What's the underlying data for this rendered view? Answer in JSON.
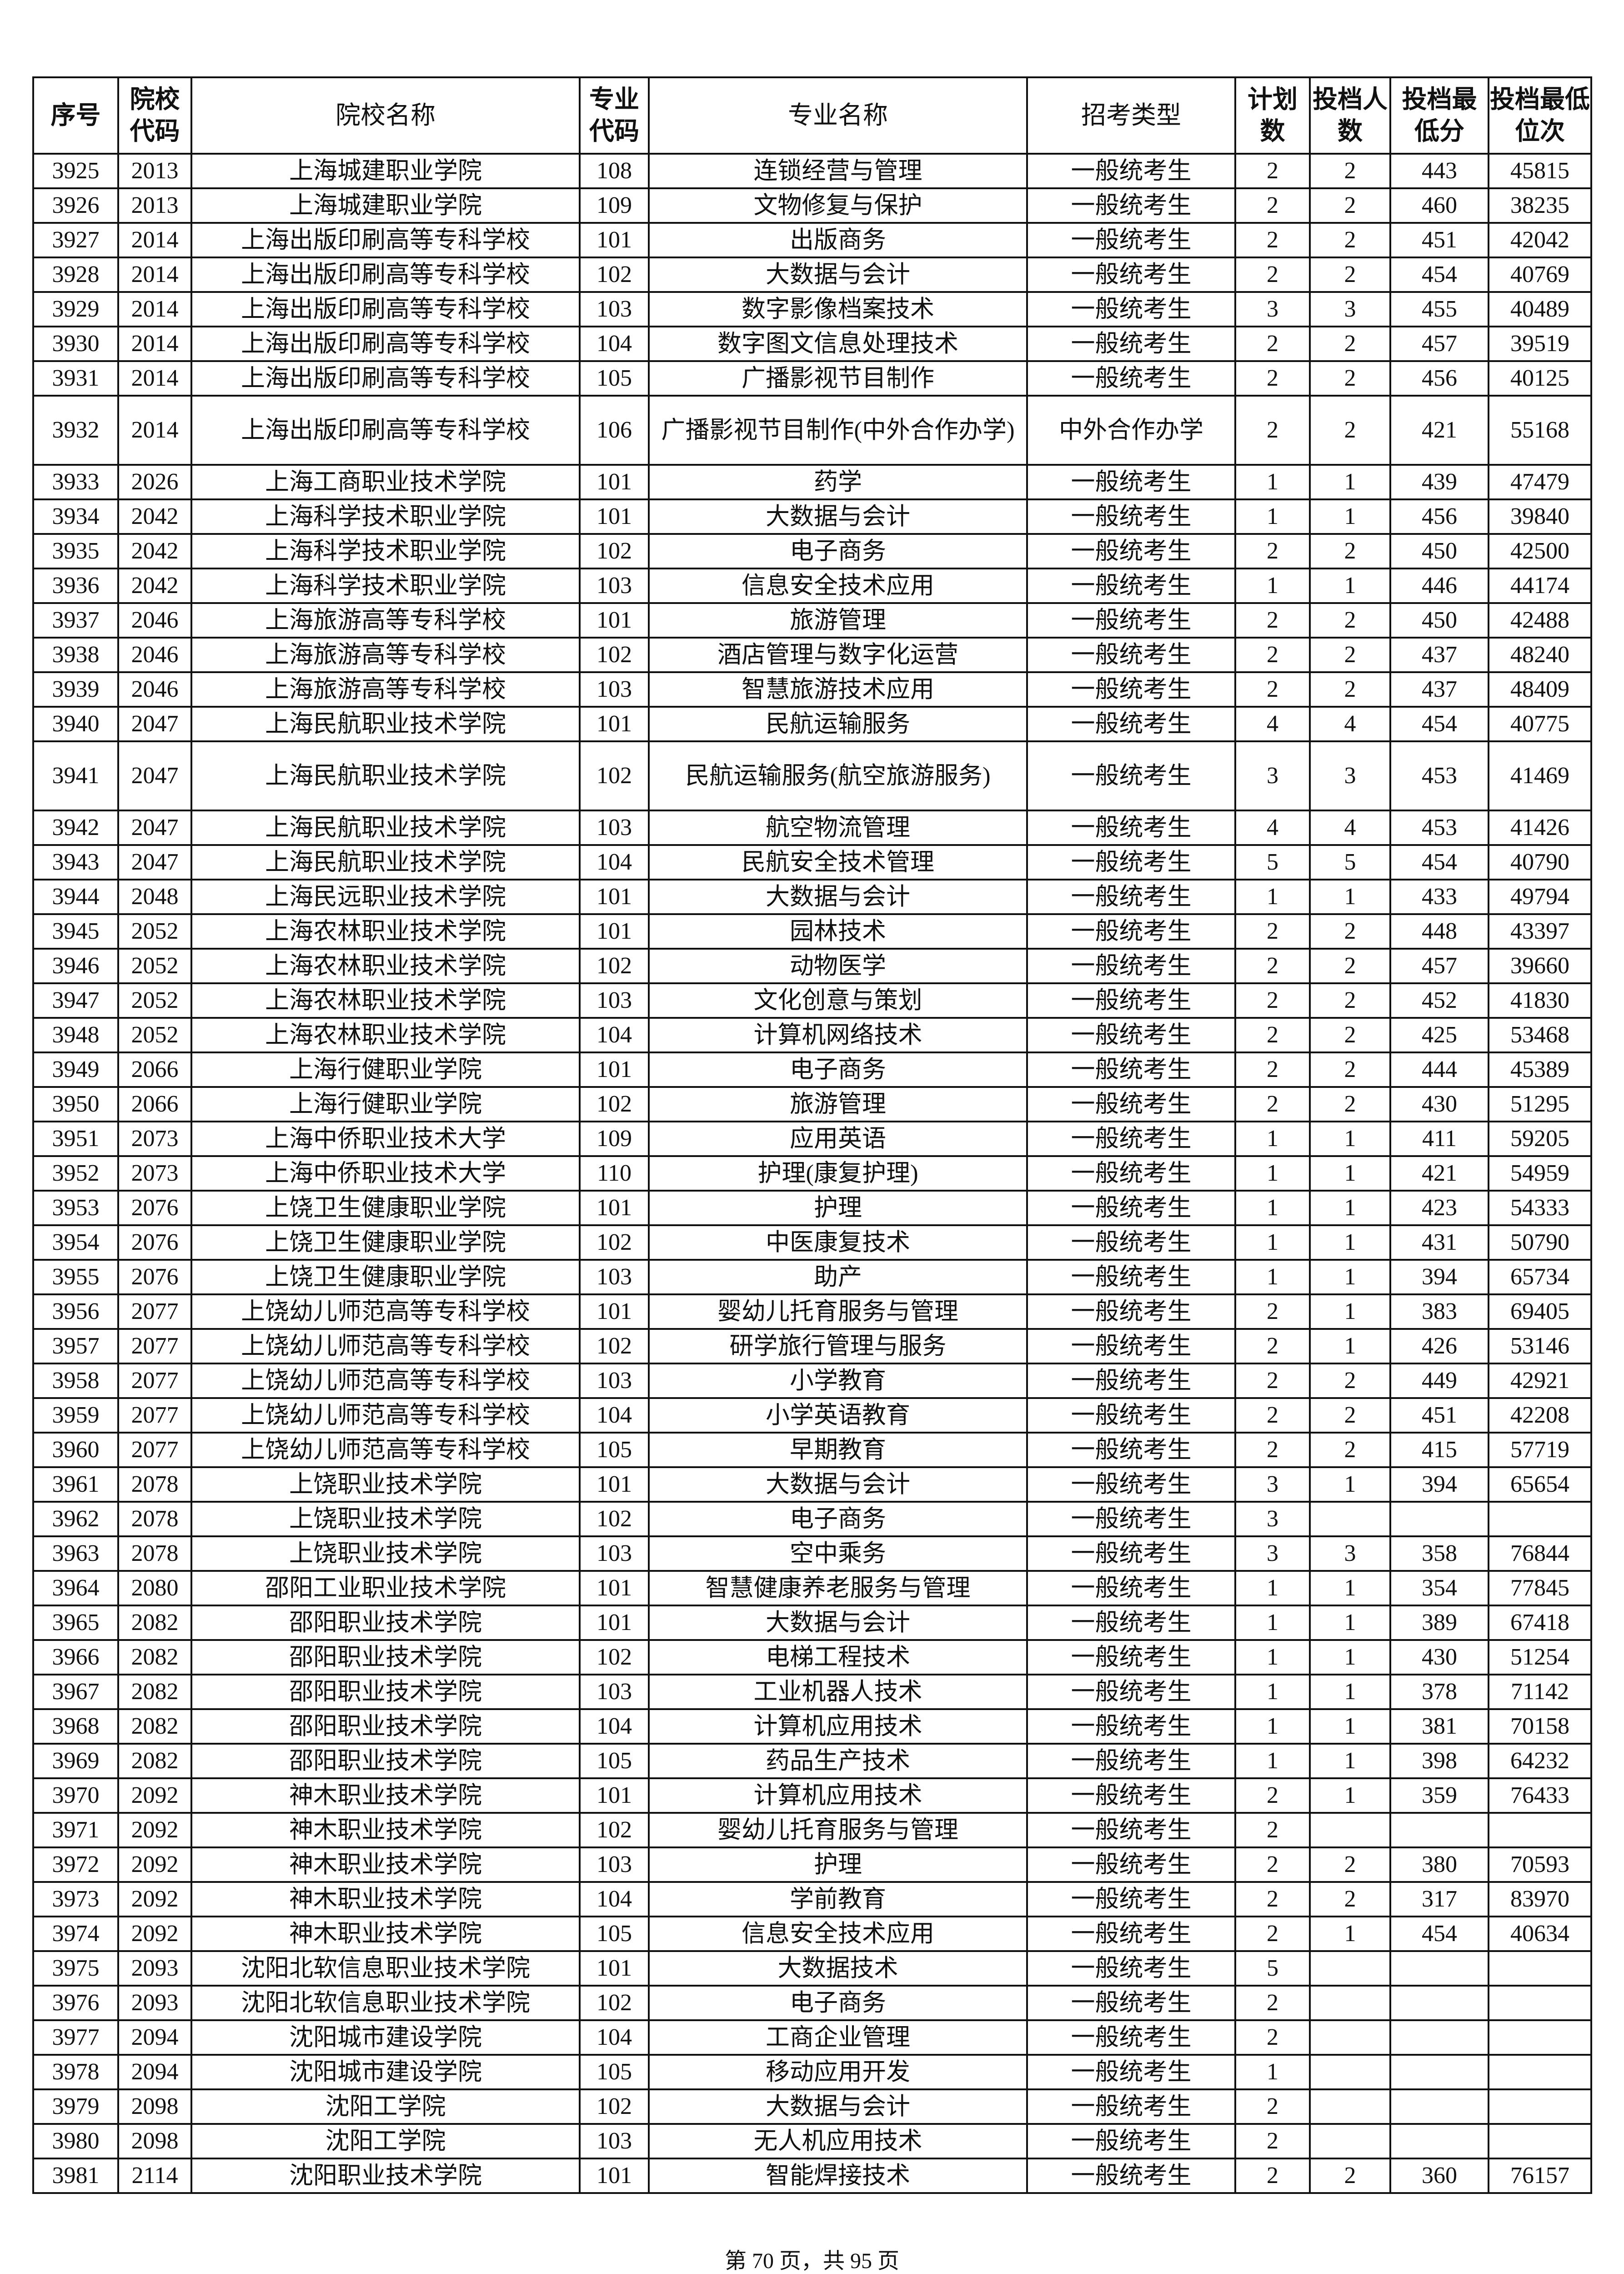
{
  "headers": [
    "序号",
    "院校代码",
    "院校名称",
    "专业代码",
    "专业名称",
    "招考类型",
    "计划数",
    "投档人数",
    "投档最低分",
    "投档最低位次"
  ],
  "rows": [
    [
      "3925",
      "2013",
      "上海城建职业学院",
      "108",
      "连锁经营与管理",
      "一般统考生",
      "2",
      "2",
      "443",
      "45815"
    ],
    [
      "3926",
      "2013",
      "上海城建职业学院",
      "109",
      "文物修复与保护",
      "一般统考生",
      "2",
      "2",
      "460",
      "38235"
    ],
    [
      "3927",
      "2014",
      "上海出版印刷高等专科学校",
      "101",
      "出版商务",
      "一般统考生",
      "2",
      "2",
      "451",
      "42042"
    ],
    [
      "3928",
      "2014",
      "上海出版印刷高等专科学校",
      "102",
      "大数据与会计",
      "一般统考生",
      "2",
      "2",
      "454",
      "40769"
    ],
    [
      "3929",
      "2014",
      "上海出版印刷高等专科学校",
      "103",
      "数字影像档案技术",
      "一般统考生",
      "3",
      "3",
      "455",
      "40489"
    ],
    [
      "3930",
      "2014",
      "上海出版印刷高等专科学校",
      "104",
      "数字图文信息处理技术",
      "一般统考生",
      "2",
      "2",
      "457",
      "39519"
    ],
    [
      "3931",
      "2014",
      "上海出版印刷高等专科学校",
      "105",
      "广播影视节目制作",
      "一般统考生",
      "2",
      "2",
      "456",
      "40125"
    ],
    [
      "3932",
      "2014",
      "上海出版印刷高等专科学校",
      "106",
      "广播影视节目制作(中外合作办学)",
      "中外合作办学",
      "2",
      "2",
      "421",
      "55168"
    ],
    [
      "3933",
      "2026",
      "上海工商职业技术学院",
      "101",
      "药学",
      "一般统考生",
      "1",
      "1",
      "439",
      "47479"
    ],
    [
      "3934",
      "2042",
      "上海科学技术职业学院",
      "101",
      "大数据与会计",
      "一般统考生",
      "1",
      "1",
      "456",
      "39840"
    ],
    [
      "3935",
      "2042",
      "上海科学技术职业学院",
      "102",
      "电子商务",
      "一般统考生",
      "2",
      "2",
      "450",
      "42500"
    ],
    [
      "3936",
      "2042",
      "上海科学技术职业学院",
      "103",
      "信息安全技术应用",
      "一般统考生",
      "1",
      "1",
      "446",
      "44174"
    ],
    [
      "3937",
      "2046",
      "上海旅游高等专科学校",
      "101",
      "旅游管理",
      "一般统考生",
      "2",
      "2",
      "450",
      "42488"
    ],
    [
      "3938",
      "2046",
      "上海旅游高等专科学校",
      "102",
      "酒店管理与数字化运营",
      "一般统考生",
      "2",
      "2",
      "437",
      "48240"
    ],
    [
      "3939",
      "2046",
      "上海旅游高等专科学校",
      "103",
      "智慧旅游技术应用",
      "一般统考生",
      "2",
      "2",
      "437",
      "48409"
    ],
    [
      "3940",
      "2047",
      "上海民航职业技术学院",
      "101",
      "民航运输服务",
      "一般统考生",
      "4",
      "4",
      "454",
      "40775"
    ],
    [
      "3941",
      "2047",
      "上海民航职业技术学院",
      "102",
      "民航运输服务(航空旅游服务)",
      "一般统考生",
      "3",
      "3",
      "453",
      "41469"
    ],
    [
      "3942",
      "2047",
      "上海民航职业技术学院",
      "103",
      "航空物流管理",
      "一般统考生",
      "4",
      "4",
      "453",
      "41426"
    ],
    [
      "3943",
      "2047",
      "上海民航职业技术学院",
      "104",
      "民航安全技术管理",
      "一般统考生",
      "5",
      "5",
      "454",
      "40790"
    ],
    [
      "3944",
      "2048",
      "上海民远职业技术学院",
      "101",
      "大数据与会计",
      "一般统考生",
      "1",
      "1",
      "433",
      "49794"
    ],
    [
      "3945",
      "2052",
      "上海农林职业技术学院",
      "101",
      "园林技术",
      "一般统考生",
      "2",
      "2",
      "448",
      "43397"
    ],
    [
      "3946",
      "2052",
      "上海农林职业技术学院",
      "102",
      "动物医学",
      "一般统考生",
      "2",
      "2",
      "457",
      "39660"
    ],
    [
      "3947",
      "2052",
      "上海农林职业技术学院",
      "103",
      "文化创意与策划",
      "一般统考生",
      "2",
      "2",
      "452",
      "41830"
    ],
    [
      "3948",
      "2052",
      "上海农林职业技术学院",
      "104",
      "计算机网络技术",
      "一般统考生",
      "2",
      "2",
      "425",
      "53468"
    ],
    [
      "3949",
      "2066",
      "上海行健职业学院",
      "101",
      "电子商务",
      "一般统考生",
      "2",
      "2",
      "444",
      "45389"
    ],
    [
      "3950",
      "2066",
      "上海行健职业学院",
      "102",
      "旅游管理",
      "一般统考生",
      "2",
      "2",
      "430",
      "51295"
    ],
    [
      "3951",
      "2073",
      "上海中侨职业技术大学",
      "109",
      "应用英语",
      "一般统考生",
      "1",
      "1",
      "411",
      "59205"
    ],
    [
      "3952",
      "2073",
      "上海中侨职业技术大学",
      "110",
      "护理(康复护理)",
      "一般统考生",
      "1",
      "1",
      "421",
      "54959"
    ],
    [
      "3953",
      "2076",
      "上饶卫生健康职业学院",
      "101",
      "护理",
      "一般统考生",
      "1",
      "1",
      "423",
      "54333"
    ],
    [
      "3954",
      "2076",
      "上饶卫生健康职业学院",
      "102",
      "中医康复技术",
      "一般统考生",
      "1",
      "1",
      "431",
      "50790"
    ],
    [
      "3955",
      "2076",
      "上饶卫生健康职业学院",
      "103",
      "助产",
      "一般统考生",
      "1",
      "1",
      "394",
      "65734"
    ],
    [
      "3956",
      "2077",
      "上饶幼儿师范高等专科学校",
      "101",
      "婴幼儿托育服务与管理",
      "一般统考生",
      "2",
      "1",
      "383",
      "69405"
    ],
    [
      "3957",
      "2077",
      "上饶幼儿师范高等专科学校",
      "102",
      "研学旅行管理与服务",
      "一般统考生",
      "2",
      "1",
      "426",
      "53146"
    ],
    [
      "3958",
      "2077",
      "上饶幼儿师范高等专科学校",
      "103",
      "小学教育",
      "一般统考生",
      "2",
      "2",
      "449",
      "42921"
    ],
    [
      "3959",
      "2077",
      "上饶幼儿师范高等专科学校",
      "104",
      "小学英语教育",
      "一般统考生",
      "2",
      "2",
      "451",
      "42208"
    ],
    [
      "3960",
      "2077",
      "上饶幼儿师范高等专科学校",
      "105",
      "早期教育",
      "一般统考生",
      "2",
      "2",
      "415",
      "57719"
    ],
    [
      "3961",
      "2078",
      "上饶职业技术学院",
      "101",
      "大数据与会计",
      "一般统考生",
      "3",
      "1",
      "394",
      "65654"
    ],
    [
      "3962",
      "2078",
      "上饶职业技术学院",
      "102",
      "电子商务",
      "一般统考生",
      "3",
      "",
      "",
      ""
    ],
    [
      "3963",
      "2078",
      "上饶职业技术学院",
      "103",
      "空中乘务",
      "一般统考生",
      "3",
      "3",
      "358",
      "76844"
    ],
    [
      "3964",
      "2080",
      "邵阳工业职业技术学院",
      "101",
      "智慧健康养老服务与管理",
      "一般统考生",
      "1",
      "1",
      "354",
      "77845"
    ],
    [
      "3965",
      "2082",
      "邵阳职业技术学院",
      "101",
      "大数据与会计",
      "一般统考生",
      "1",
      "1",
      "389",
      "67418"
    ],
    [
      "3966",
      "2082",
      "邵阳职业技术学院",
      "102",
      "电梯工程技术",
      "一般统考生",
      "1",
      "1",
      "430",
      "51254"
    ],
    [
      "3967",
      "2082",
      "邵阳职业技术学院",
      "103",
      "工业机器人技术",
      "一般统考生",
      "1",
      "1",
      "378",
      "71142"
    ],
    [
      "3968",
      "2082",
      "邵阳职业技术学院",
      "104",
      "计算机应用技术",
      "一般统考生",
      "1",
      "1",
      "381",
      "70158"
    ],
    [
      "3969",
      "2082",
      "邵阳职业技术学院",
      "105",
      "药品生产技术",
      "一般统考生",
      "1",
      "1",
      "398",
      "64232"
    ],
    [
      "3970",
      "2092",
      "神木职业技术学院",
      "101",
      "计算机应用技术",
      "一般统考生",
      "2",
      "1",
      "359",
      "76433"
    ],
    [
      "3971",
      "2092",
      "神木职业技术学院",
      "102",
      "婴幼儿托育服务与管理",
      "一般统考生",
      "2",
      "",
      "",
      ""
    ],
    [
      "3972",
      "2092",
      "神木职业技术学院",
      "103",
      "护理",
      "一般统考生",
      "2",
      "2",
      "380",
      "70593"
    ],
    [
      "3973",
      "2092",
      "神木职业技术学院",
      "104",
      "学前教育",
      "一般统考生",
      "2",
      "2",
      "317",
      "83970"
    ],
    [
      "3974",
      "2092",
      "神木职业技术学院",
      "105",
      "信息安全技术应用",
      "一般统考生",
      "2",
      "1",
      "454",
      "40634"
    ],
    [
      "3975",
      "2093",
      "沈阳北软信息职业技术学院",
      "101",
      "大数据技术",
      "一般统考生",
      "5",
      "",
      "",
      ""
    ],
    [
      "3976",
      "2093",
      "沈阳北软信息职业技术学院",
      "102",
      "电子商务",
      "一般统考生",
      "2",
      "",
      "",
      ""
    ],
    [
      "3977",
      "2094",
      "沈阳城市建设学院",
      "104",
      "工商企业管理",
      "一般统考生",
      "2",
      "",
      "",
      ""
    ],
    [
      "3978",
      "2094",
      "沈阳城市建设学院",
      "105",
      "移动应用开发",
      "一般统考生",
      "1",
      "",
      "",
      ""
    ],
    [
      "3979",
      "2098",
      "沈阳工学院",
      "102",
      "大数据与会计",
      "一般统考生",
      "2",
      "",
      "",
      ""
    ],
    [
      "3980",
      "2098",
      "沈阳工学院",
      "103",
      "无人机应用技术",
      "一般统考生",
      "2",
      "",
      "",
      ""
    ],
    [
      "3981",
      "2114",
      "沈阳职业技术学院",
      "101",
      "智能焊接技术",
      "一般统考生",
      "2",
      "2",
      "360",
      "76157"
    ]
  ],
  "footer": "第 70 页，共 95 页"
}
